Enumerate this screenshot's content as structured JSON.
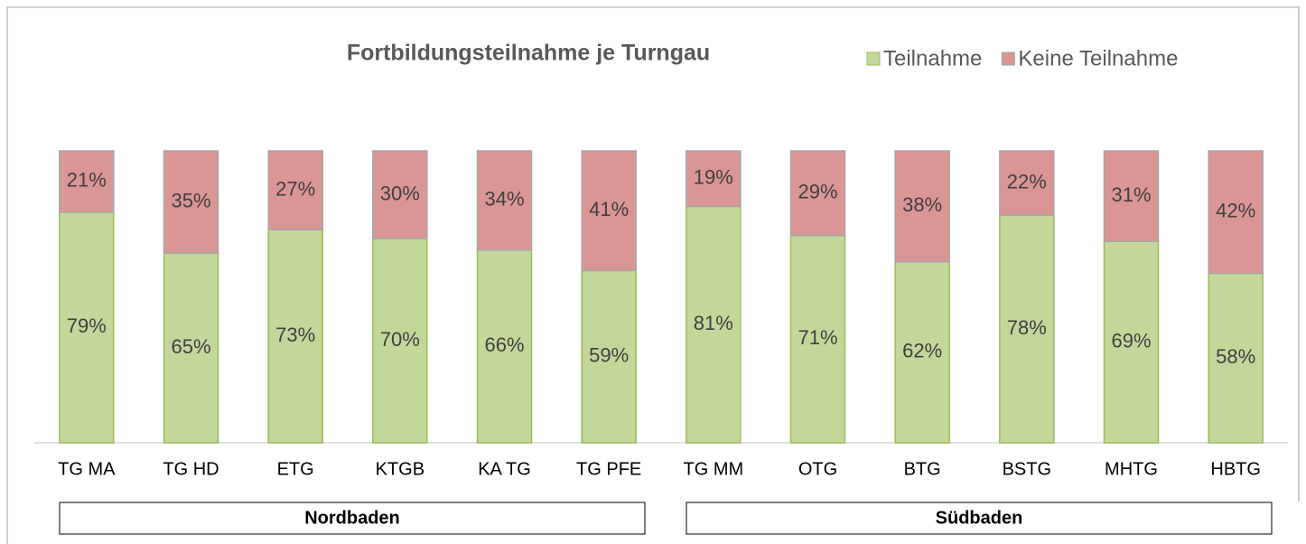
{
  "chart_data": {
    "type": "stacked_bar",
    "title": "Fortbildungsteilnahme je Turngau",
    "categories": [
      "TG MA",
      "TG HD",
      "ETG",
      "KTGB",
      "KA TG",
      "TG PFE",
      "TG MM",
      "OTG",
      "BTG",
      "BSTG",
      "MHTG",
      "HBTG"
    ],
    "series": [
      {
        "name": "Teilnahme",
        "color": "#c4d79b",
        "values": [
          79,
          65,
          73,
          70,
          66,
          59,
          81,
          71,
          62,
          78,
          69,
          58
        ],
        "value_labels": [
          "79%",
          "65%",
          "73%",
          "70%",
          "66%",
          "59%",
          "81%",
          "71%",
          "62%",
          "78%",
          "69%",
          "58%"
        ]
      },
      {
        "name": "Keine Teilnahme",
        "color": "#da9694",
        "values": [
          21,
          35,
          27,
          30,
          34,
          41,
          19,
          29,
          38,
          22,
          31,
          42
        ],
        "value_labels": [
          "21%",
          "35%",
          "27%",
          "30%",
          "34%",
          "41%",
          "19%",
          "29%",
          "38%",
          "22%",
          "31%",
          "42%"
        ]
      }
    ],
    "ylim": [
      0,
      100
    ],
    "legend": "top-right",
    "groups": [
      "Nordbaden",
      "Südbaden"
    ]
  }
}
